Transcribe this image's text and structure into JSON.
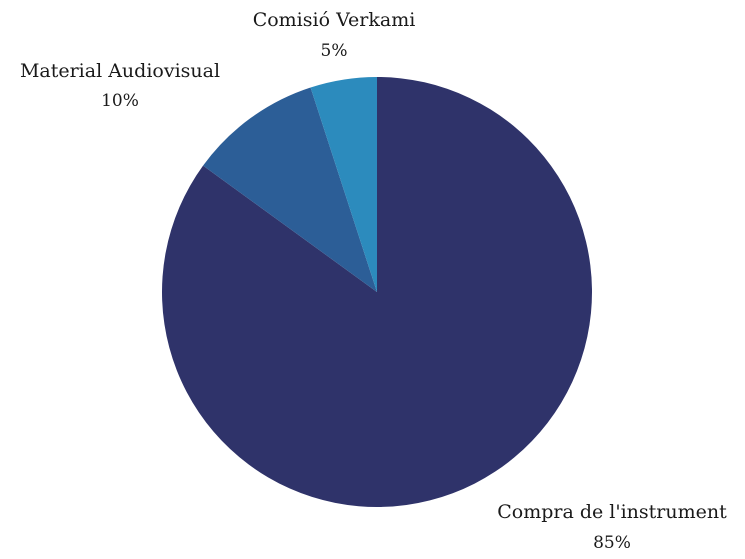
{
  "chart_data": {
    "type": "pie",
    "title": "",
    "slices": [
      {
        "label": "Compra de l'instrument",
        "value": 85,
        "display": "85%",
        "color": "#2f336a"
      },
      {
        "label": "Material Audiovisual",
        "value": 10,
        "display": "10%",
        "color": "#2c5e97"
      },
      {
        "label": "Comisió Verkami",
        "value": 5,
        "display": "5%",
        "color": "#2c8bbd"
      }
    ],
    "legend": "none"
  }
}
